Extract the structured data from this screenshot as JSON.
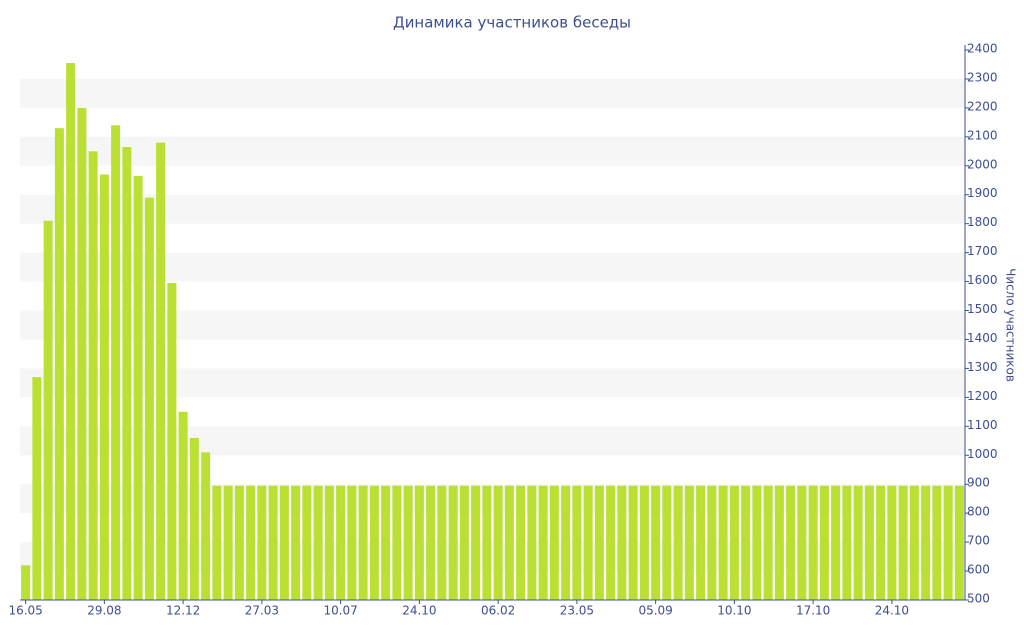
{
  "chart_data": {
    "type": "bar",
    "title": "Динамика участников беседы",
    "y_axis_label": "Число участников",
    "categories": [
      "16.05",
      null,
      null,
      null,
      null,
      null,
      null,
      "29.08",
      null,
      null,
      null,
      null,
      null,
      null,
      "12.12",
      null,
      null,
      null,
      null,
      null,
      null,
      "27.03",
      null,
      null,
      null,
      null,
      null,
      null,
      "10.07",
      null,
      null,
      null,
      null,
      null,
      null,
      "24.10",
      null,
      null,
      null,
      null,
      null,
      null,
      "06.02",
      null,
      null,
      null,
      null,
      null,
      null,
      "23.05",
      null,
      null,
      null,
      null,
      null,
      null,
      "05.09",
      null,
      null,
      null,
      null,
      null,
      null,
      "10.10",
      null,
      null,
      null,
      null,
      null,
      null,
      "17.10",
      null,
      null,
      null,
      null,
      null,
      null,
      "24.10",
      null,
      null,
      null,
      null,
      null,
      null
    ],
    "values": [
      620,
      1270,
      1810,
      2130,
      2355,
      2200,
      2050,
      1970,
      2140,
      2065,
      1965,
      1890,
      2080,
      1595,
      1150,
      1060,
      1010,
      895,
      895,
      895,
      895,
      895,
      895,
      895,
      895,
      895,
      895,
      895,
      895,
      895,
      895,
      895,
      895,
      895,
      895,
      895,
      895,
      895,
      895,
      895,
      895,
      895,
      895,
      895,
      895,
      895,
      895,
      895,
      895,
      895,
      895,
      895,
      895,
      895,
      895,
      895,
      895,
      895,
      895,
      895,
      895,
      895,
      895,
      895,
      895,
      895,
      895,
      895,
      895,
      895,
      895,
      895,
      895,
      895,
      895,
      895,
      895,
      895,
      895,
      895,
      895,
      895,
      895,
      895
    ],
    "color": "#bbe034",
    "ylim": [
      500,
      2400
    ],
    "yticks": [
      500,
      600,
      700,
      800,
      900,
      1000,
      1100,
      1200,
      1300,
      1400,
      1500,
      1600,
      1700,
      1800,
      1900,
      2000,
      2100,
      2200,
      2300,
      2400
    ],
    "grid": "bands",
    "y_axis_side": "right"
  }
}
